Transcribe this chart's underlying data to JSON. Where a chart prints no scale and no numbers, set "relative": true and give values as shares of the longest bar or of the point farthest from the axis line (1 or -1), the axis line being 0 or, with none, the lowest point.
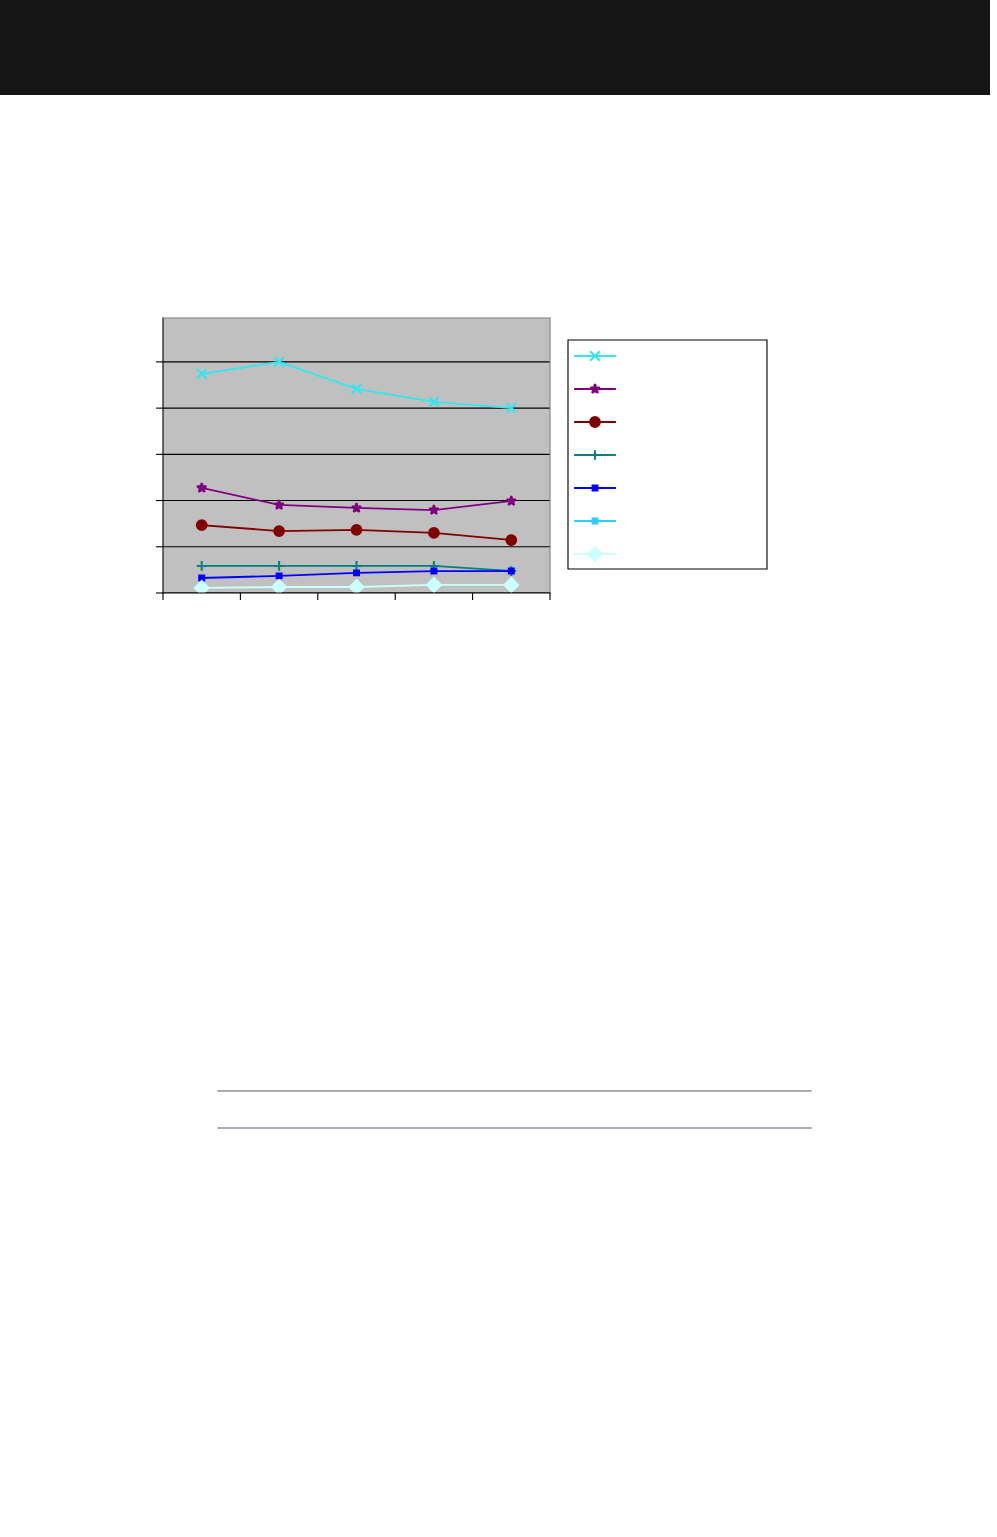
{
  "chart_data": {
    "type": "line",
    "relative": true,
    "categories": [
      null,
      null,
      null,
      null,
      null
    ],
    "grid": "y",
    "line_style": "solid",
    "series": [
      {
        "color": "#33e6f0",
        "marker": "cross",
        "values": [
          0.948,
          1,
          0.883,
          0.827,
          0.801
        ]
      },
      {
        "color": "#800080",
        "marker": "star",
        "values": [
          0.455,
          0.381,
          0.368,
          0.359,
          0.398
        ]
      },
      {
        "color": "#800000",
        "marker": "circle",
        "values": [
          0.294,
          0.268,
          0.273,
          0.26,
          0.229
        ]
      },
      {
        "color": "#008080",
        "marker": "plus",
        "values": [
          0.117,
          0.117,
          0.117,
          0.117,
          0.095
        ]
      },
      {
        "color": "#0000ff",
        "marker": "square",
        "values": [
          0.065,
          0.074,
          0.087,
          0.095,
          0.095
        ]
      },
      {
        "color": "#33ccff",
        "marker": "square",
        "values": [
          null,
          null,
          null,
          null,
          null
        ]
      },
      {
        "color": "#ccffff",
        "marker": "diamond",
        "values": [
          0.022,
          0.026,
          0.026,
          0.035,
          0.035
        ]
      }
    ]
  }
}
